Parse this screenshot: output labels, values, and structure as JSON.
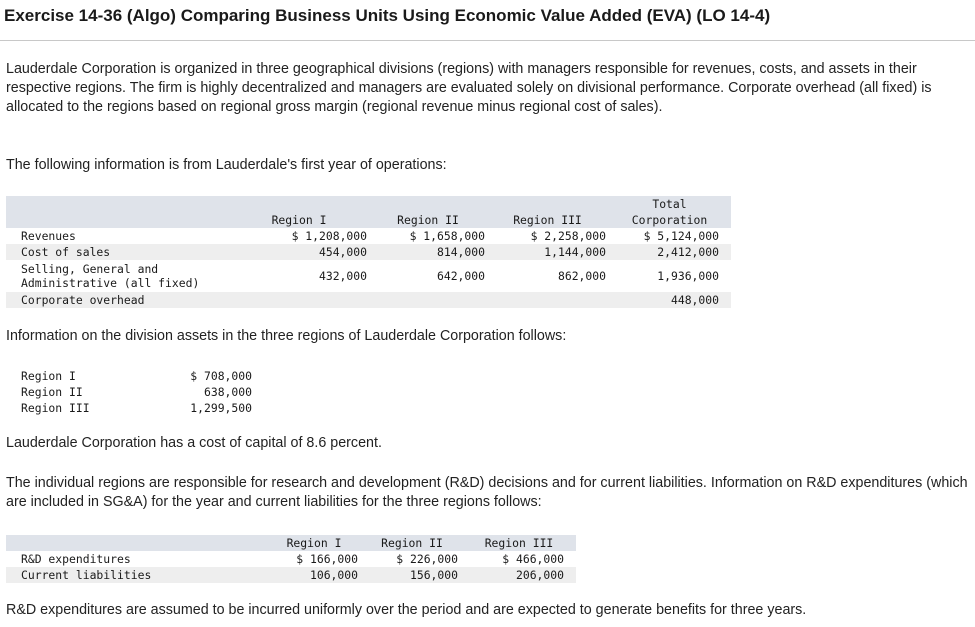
{
  "title": "Exercise 14-36 (Algo) Comparing Business Units Using Economic Value Added (EVA) (LO 14-4)",
  "paragraphs": {
    "intro": "Lauderdale Corporation is organized in three geographical divisions (regions) with managers responsible for revenues, costs, and assets in their respective regions. The firm is highly decentralized and managers are evaluated solely on divisional performance. Corporate overhead (all fixed) is allocated to the regions based on regional gross margin (regional revenue minus regional cost of sales).",
    "following": "The following information is from Lauderdale's first year of operations:",
    "assets_intro": "Information on the division assets in the three regions of Lauderdale Corporation follows:",
    "cost_of_capital": "Lauderdale Corporation has a cost of capital of 8.6 percent.",
    "responsibility": "The individual regions are responsible for research and development (R&D) decisions and for current liabilities. Information on R&D expenditures (which are included in SG&A) for the year and current liabilities for the three regions follows:",
    "rd_assumption": "R&D expenditures are assumed to be incurred uniformly over the period and are expected to generate benefits for three years."
  },
  "operations_table": {
    "headers": {
      "region1": "Region I",
      "region2": "Region II",
      "region3": "Region III",
      "total_line1": "Total",
      "total_line2": "Corporation"
    },
    "rows": [
      {
        "label": "Revenues",
        "r1": "$ 1,208,000",
        "r2": "$ 1,658,000",
        "r3": "$ 2,258,000",
        "total": "$ 5,124,000"
      },
      {
        "label": "Cost of sales",
        "r1": "454,000",
        "r2": "814,000",
        "r3": "1,144,000",
        "total": "2,412,000"
      },
      {
        "label_line1": "Selling, General and",
        "label_line2": "Administrative (all fixed)",
        "r1": "432,000",
        "r2": "642,000",
        "r3": "862,000",
        "total": "1,936,000"
      },
      {
        "label": "Corporate overhead",
        "total": "448,000"
      }
    ]
  },
  "assets_table": {
    "rows": [
      {
        "label": "Region I",
        "value": "$ 708,000"
      },
      {
        "label": "Region II",
        "value": "638,000"
      },
      {
        "label": "Region III",
        "value": "1,299,500"
      }
    ]
  },
  "rd_table": {
    "headers": {
      "region1": "Region I",
      "region2": "Region II",
      "region3": "Region III"
    },
    "rows": [
      {
        "label": "R&D expenditures",
        "r1": "$ 166,000",
        "r2": "$ 226,000",
        "r3": "$ 466,000"
      },
      {
        "label": "Current liabilities",
        "r1": "106,000",
        "r2": "156,000",
        "r3": "206,000"
      }
    ]
  }
}
